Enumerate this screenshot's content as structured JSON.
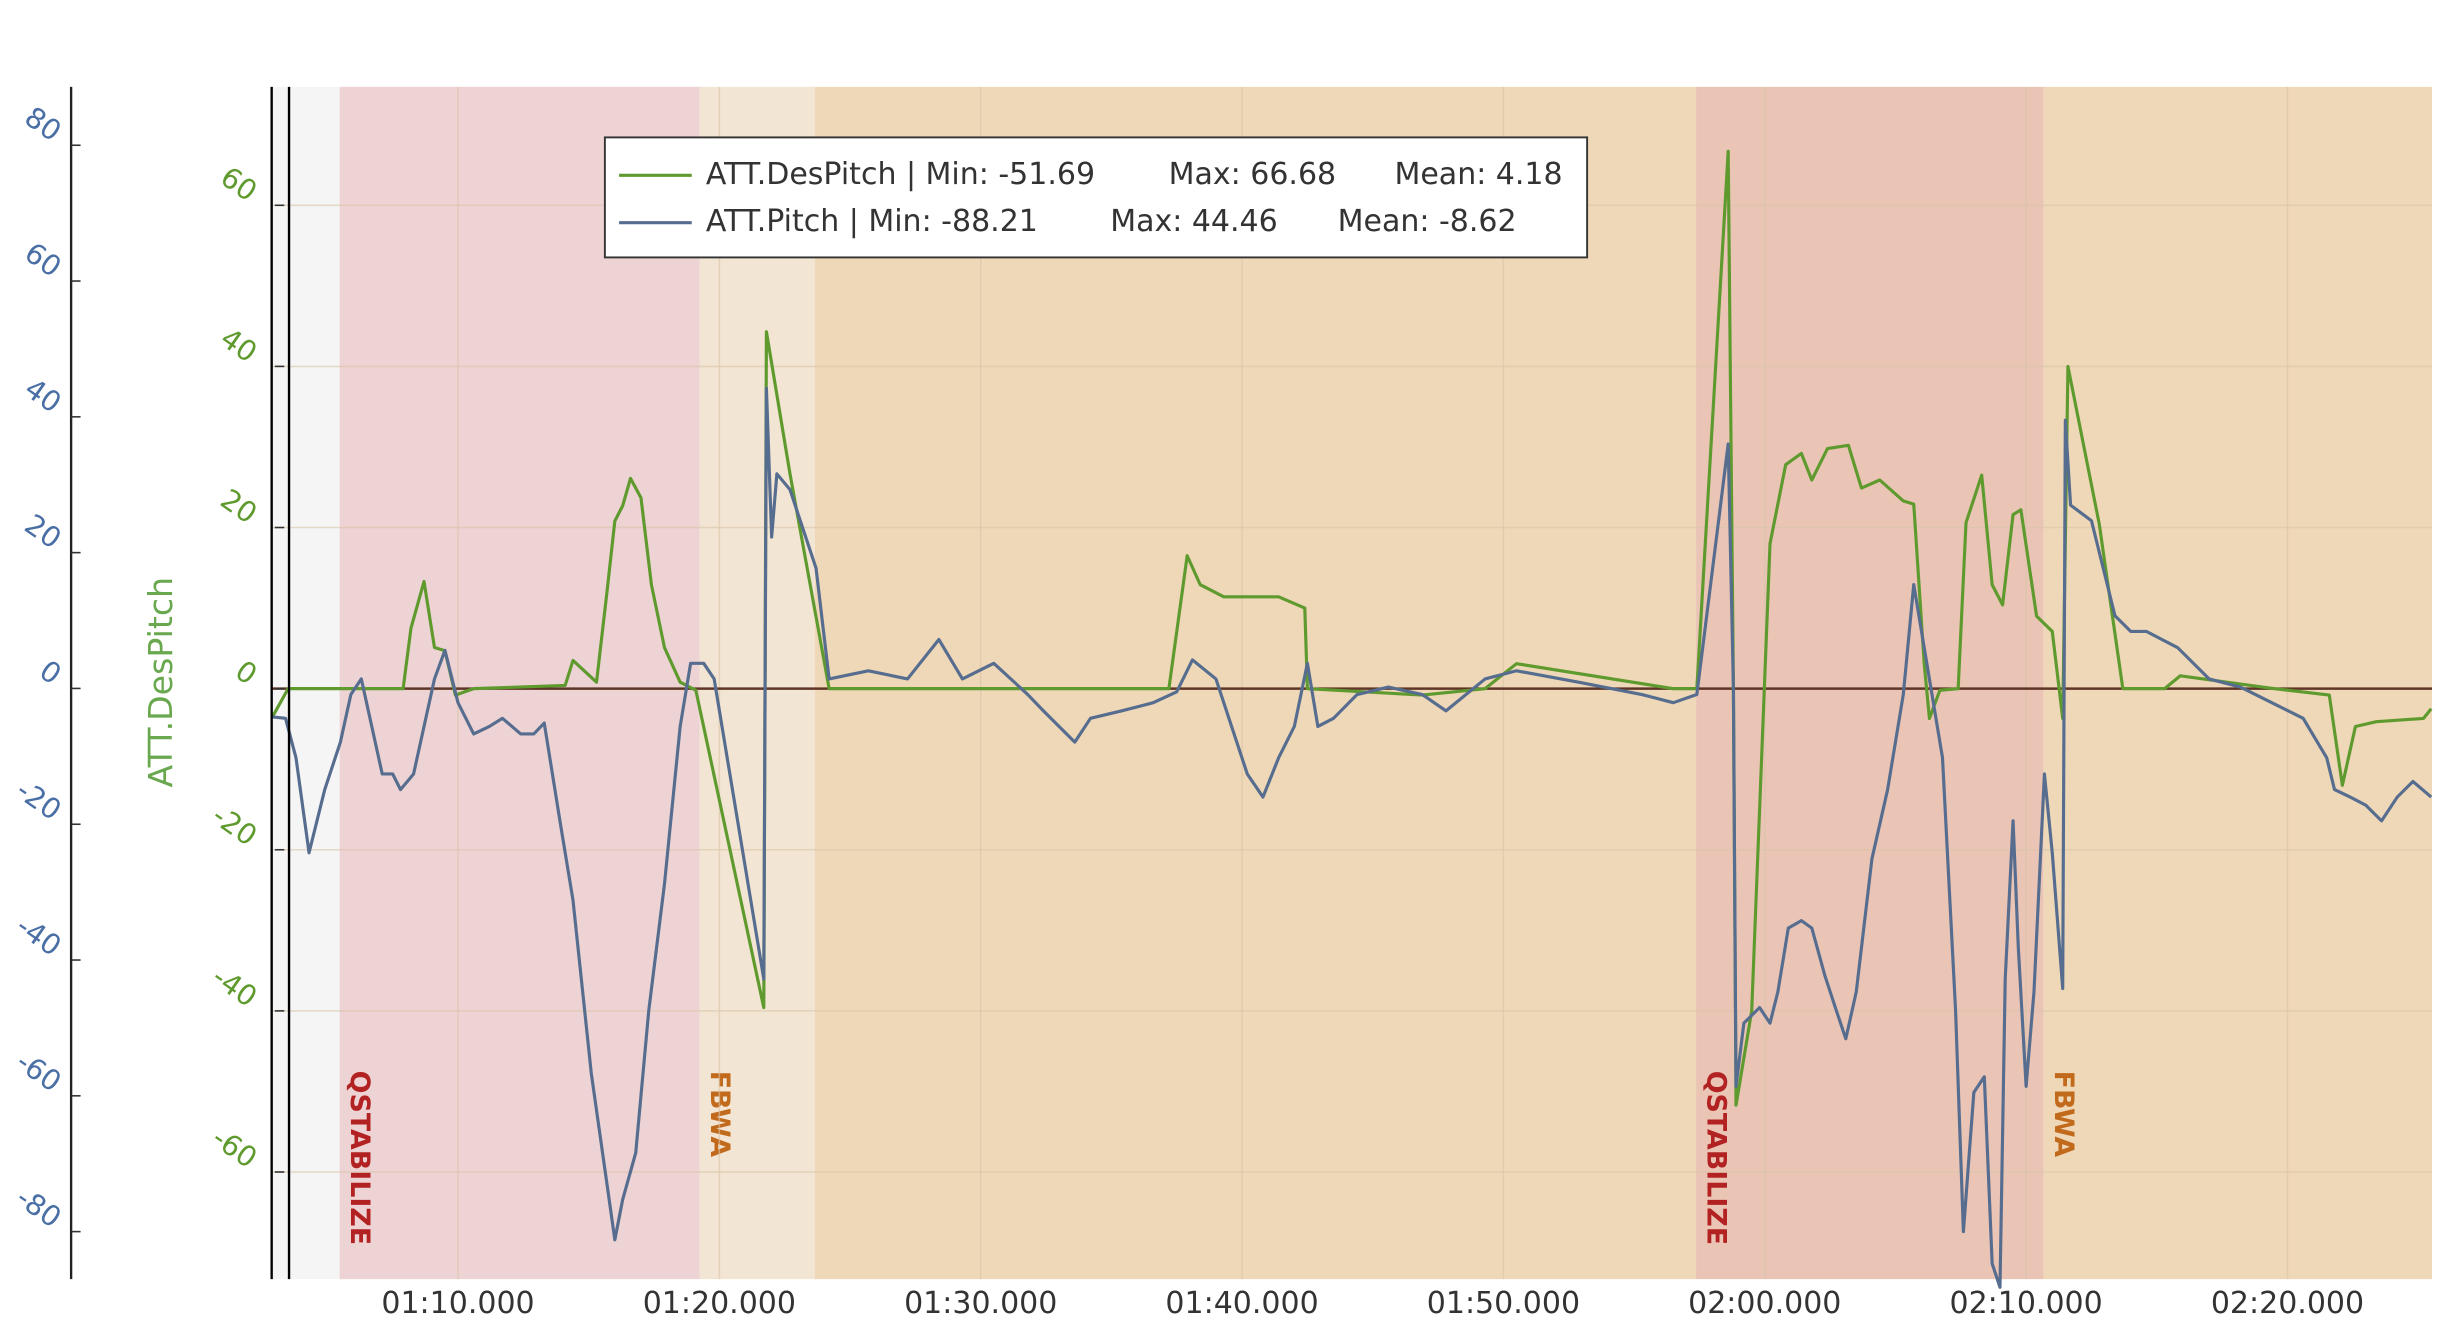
{
  "chart_data": {
    "type": "line",
    "ylabel": "ATT.DesPitch",
    "xlim": [
      62.87,
      145.53
    ],
    "xticks": [
      {
        "value": 70,
        "label": "01:10.000"
      },
      {
        "value": 80,
        "label": "01:20.000"
      },
      {
        "value": 90,
        "label": "01:30.000"
      },
      {
        "value": 100,
        "label": "01:40.000"
      },
      {
        "value": 110,
        "label": "01:50.000"
      },
      {
        "value": 120,
        "label": "02:00.000"
      },
      {
        "value": 130,
        "label": "02:10.000"
      },
      {
        "value": 140,
        "label": "02:20.000"
      }
    ],
    "ylim": [
      -73.3,
      74.7
    ],
    "yticks": [
      -60,
      -40,
      -20,
      0,
      20,
      40,
      60
    ],
    "y2lim": [
      -87.0,
      88.6
    ],
    "y2ticks": [
      -80,
      -60,
      -40,
      -20,
      0,
      20,
      40,
      60,
      80
    ],
    "grid": true,
    "legend": "top-left",
    "stat_labels": [
      "Min:",
      "Max:",
      "Mean:"
    ],
    "separator": "|",
    "bands": [
      {
        "start": 62.87,
        "end": 65.47,
        "color": "#f5f5f5"
      },
      {
        "start": 65.47,
        "end": 79.24,
        "color": "#eed3d4",
        "label": "QSTABILIZE",
        "label_color": "#b22222"
      },
      {
        "start": 79.24,
        "end": 83.66,
        "color": "#f3e5d3",
        "label": "FBWA",
        "label_color": "#c26a1c"
      },
      {
        "start": 83.66,
        "end": 117.37,
        "color": "#efd8b8"
      },
      {
        "start": 117.37,
        "end": 130.67,
        "color": "#eac5b6",
        "label": "QSTABILIZE",
        "label_color": "#b22222"
      },
      {
        "start": 130.67,
        "end": 145.53,
        "color": "#efd8b8",
        "label": "FBWA",
        "label_color": "#c26a1c"
      }
    ],
    "series": [
      {
        "name": "ATT.DesPitch",
        "color": "#5f9a2e",
        "axis": "y",
        "min": -51.69,
        "max": 66.68,
        "mean": 4.18,
        "x": [
          62.9,
          63.5,
          67.9,
          68.2,
          68.7,
          69.1,
          69.5,
          69.9,
          70.6,
          74.1,
          74.4,
          75.3,
          75.7,
          76.0,
          76.3,
          76.6,
          77.0,
          77.4,
          77.9,
          78.5,
          79.1,
          81.7,
          81.8,
          82.7,
          84.2,
          97.2,
          97.9,
          98.4,
          99.3,
          101.4,
          102.4,
          102.5,
          106.9,
          109.3,
          110.5,
          116.5,
          117.4,
          118.6,
          118.8,
          118.9,
          119.5,
          120.2,
          120.8,
          121.4,
          121.8,
          122.4,
          123.2,
          123.7,
          124.4,
          125.3,
          125.7,
          126.1,
          126.3,
          126.7,
          127.4,
          127.7,
          128.3,
          128.7,
          129.1,
          129.5,
          129.8,
          130.4,
          131.0,
          131.4,
          131.6,
          132.8,
          133.7,
          135.3,
          135.9,
          139.5,
          141.6,
          142.1,
          142.6,
          143.4,
          145.2,
          145.5
        ],
        "values": [
          -3.5,
          0,
          0,
          7.5,
          13.3,
          5.1,
          4.7,
          -0.8,
          0,
          0.4,
          3.5,
          0.8,
          12,
          20.8,
          22.7,
          26.1,
          23.7,
          12.9,
          5.1,
          0.8,
          -0.2,
          -39.6,
          44.3,
          26.7,
          0,
          0,
          16.5,
          12.9,
          11.4,
          11.4,
          10.0,
          0,
          -0.8,
          0,
          3.1,
          0,
          0,
          66.7,
          0,
          -51.7,
          -40.0,
          18.0,
          27.8,
          29.2,
          25.9,
          29.8,
          30.2,
          24.9,
          25.9,
          23.3,
          22.9,
          3.1,
          -3.7,
          -0.2,
          0,
          20.6,
          26.5,
          12.9,
          10.4,
          21.6,
          22.2,
          9.0,
          7.1,
          -3.7,
          40.0,
          20.4,
          0,
          0,
          1.6,
          0,
          -0.8,
          -12.0,
          -4.7,
          -4.1,
          -3.7,
          -2.5
        ]
      },
      {
        "name": "ATT.Pitch",
        "color": "#566d8f",
        "axis": "y2",
        "min": -88.21,
        "max": 44.46,
        "mean": -8.62,
        "x": [
          62.9,
          63.4,
          63.8,
          64.3,
          64.9,
          65.5,
          65.9,
          66.3,
          66.7,
          67.1,
          67.5,
          67.8,
          68.3,
          68.7,
          69.1,
          69.5,
          70.0,
          70.6,
          71.2,
          71.7,
          72.4,
          72.9,
          73.3,
          73.9,
          74.4,
          75.1,
          75.7,
          76.0,
          76.3,
          76.8,
          77.3,
          77.9,
          78.5,
          78.9,
          79.4,
          79.8,
          81.7,
          81.8,
          82.0,
          82.2,
          82.7,
          83.7,
          84.2,
          85.7,
          87.2,
          88.4,
          89.3,
          90.5,
          91.8,
          92.4,
          93.6,
          94.2,
          95.4,
          96.6,
          97.5,
          98.1,
          99.0,
          99.6,
          100.2,
          100.8,
          101.4,
          102.0,
          102.5,
          102.9,
          103.5,
          104.4,
          105.6,
          106.9,
          107.8,
          109.3,
          110.5,
          112.9,
          115.3,
          116.5,
          117.4,
          118.6,
          118.8,
          118.9,
          119.2,
          119.8,
          120.2,
          120.5,
          120.9,
          121.4,
          121.8,
          122.3,
          122.7,
          123.1,
          123.5,
          124.1,
          124.7,
          125.3,
          125.7,
          126.2,
          126.8,
          127.3,
          127.6,
          128.0,
          128.4,
          128.7,
          129.0,
          129.2,
          129.5,
          129.7,
          130.0,
          130.3,
          130.7,
          131.0,
          131.4,
          131.5,
          131.7,
          132.5,
          133.4,
          134.0,
          134.6,
          135.8,
          137.0,
          138.2,
          139.4,
          140.6,
          141.5,
          141.8,
          142.4,
          143.0,
          143.6,
          144.2,
          144.8,
          145.5
        ],
        "values": [
          -4.2,
          -4.4,
          -10.2,
          -24.2,
          -14.9,
          -7.9,
          -0.9,
          1.4,
          -5.6,
          -12.6,
          -12.6,
          -14.9,
          -12.6,
          -5.6,
          1.4,
          5.6,
          -2.1,
          -6.7,
          -5.6,
          -4.4,
          -6.7,
          -6.7,
          -5.1,
          -19.5,
          -31.2,
          -56.7,
          -73.0,
          -81.2,
          -75.3,
          -68.4,
          -47.4,
          -28.8,
          -5.6,
          3.7,
          3.7,
          1.4,
          -42.8,
          44.2,
          22.3,
          31.6,
          29.3,
          17.7,
          1.4,
          2.6,
          1.4,
          7.2,
          1.4,
          3.7,
          -0.9,
          -3.3,
          -7.9,
          -4.4,
          -3.3,
          -2.1,
          -0.5,
          4.2,
          1.4,
          -5.6,
          -12.6,
          -16.0,
          -10.2,
          -5.6,
          3.7,
          -5.6,
          -4.4,
          -0.9,
          0.2,
          -0.9,
          -3.3,
          1.4,
          2.6,
          0.9,
          -0.9,
          -2.1,
          -0.9,
          36.0,
          0,
          -58.6,
          -49.3,
          -47.0,
          -49.3,
          -44.7,
          -35.3,
          -34.2,
          -35.3,
          -42.3,
          -47.0,
          -51.6,
          -44.7,
          -25.1,
          -14.9,
          -0.9,
          15.3,
          3.7,
          -10.2,
          -47.4,
          -80.0,
          -59.5,
          -57.2,
          -84.7,
          -88.2,
          -42.8,
          -19.5,
          -38.1,
          -58.6,
          -44.7,
          -12.6,
          -24.2,
          -44.2,
          39.5,
          27.0,
          24.7,
          10.7,
          8.4,
          8.4,
          6.0,
          1.4,
          0.2,
          -2.1,
          -4.4,
          -10.2,
          -14.9,
          -16.0,
          -17.2,
          -19.5,
          -16.0,
          -13.7,
          -16.0
        ]
      }
    ]
  }
}
